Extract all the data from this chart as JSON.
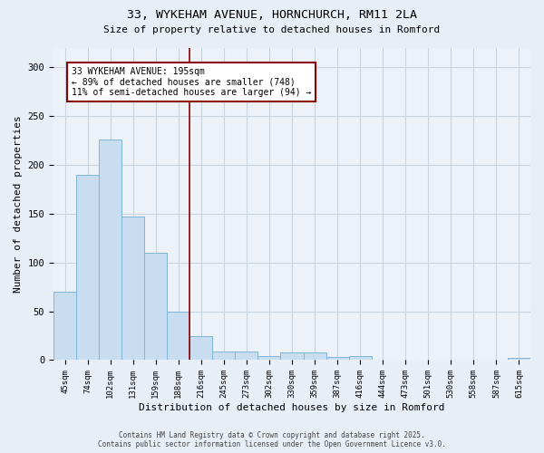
{
  "title_line1": "33, WYKEHAM AVENUE, HORNCHURCH, RM11 2LA",
  "title_line2": "Size of property relative to detached houses in Romford",
  "xlabel": "Distribution of detached houses by size in Romford",
  "ylabel": "Number of detached properties",
  "categories": [
    "45sqm",
    "74sqm",
    "102sqm",
    "131sqm",
    "159sqm",
    "188sqm",
    "216sqm",
    "245sqm",
    "273sqm",
    "302sqm",
    "330sqm",
    "359sqm",
    "387sqm",
    "416sqm",
    "444sqm",
    "473sqm",
    "501sqm",
    "530sqm",
    "558sqm",
    "587sqm",
    "615sqm"
  ],
  "values": [
    70,
    190,
    226,
    147,
    110,
    50,
    25,
    9,
    9,
    4,
    8,
    8,
    3,
    4,
    0,
    0,
    0,
    0,
    0,
    0,
    2
  ],
  "bar_color": "#c9ddf0",
  "bar_edge_color": "#7eb6d9",
  "vline_x": 5.5,
  "vline_color": "#8b0000",
  "annotation_text": "33 WYKEHAM AVENUE: 195sqm\n← 89% of detached houses are smaller (748)\n11% of semi-detached houses are larger (94) →",
  "annotation_box_color": "#ffffff",
  "annotation_box_edge": "#8b0000",
  "ylim": [
    0,
    320
  ],
  "yticks": [
    0,
    50,
    100,
    150,
    200,
    250,
    300
  ],
  "footnote1": "Contains HM Land Registry data © Crown copyright and database right 2025.",
  "footnote2": "Contains public sector information licensed under the Open Government Licence v3.0.",
  "bg_color": "#e8eef5",
  "plot_bg_color": "#edf2f8",
  "grid_color": "#c8d4e0",
  "title_fontsize": 9.5,
  "subtitle_fontsize": 8,
  "tick_fontsize": 6.5,
  "ylabel_fontsize": 8,
  "xlabel_fontsize": 8,
  "annotation_fontsize": 7,
  "footnote_fontsize": 5.5
}
